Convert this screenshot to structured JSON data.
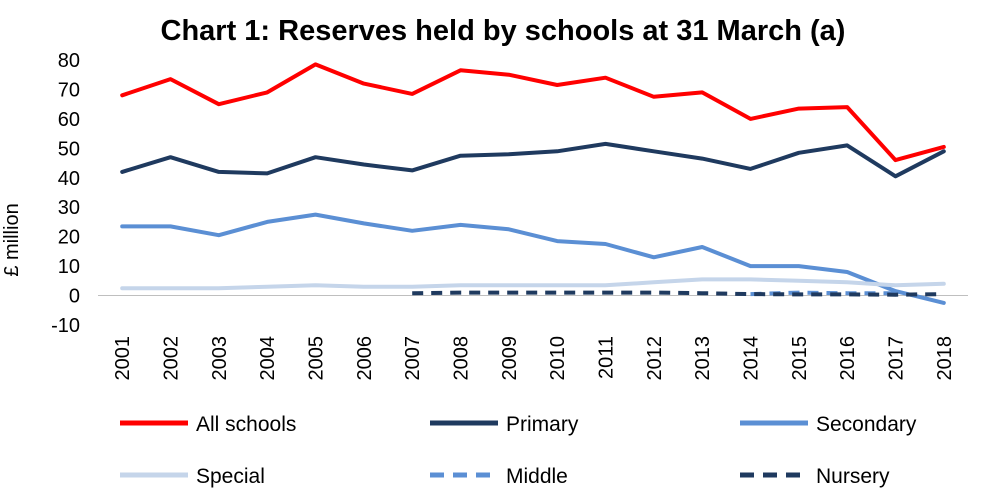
{
  "chart_data": {
    "type": "line",
    "title": "Chart 1: Reserves held by schools at 31 March (a)",
    "xlabel": "",
    "ylabel": "£ million",
    "ylim": [
      -10,
      80
    ],
    "yticks": [
      80,
      70,
      60,
      50,
      40,
      30,
      20,
      10,
      0,
      -10
    ],
    "x": [
      "2001",
      "2002",
      "2003",
      "2004",
      "2005",
      "2006",
      "2007",
      "2008",
      "2009",
      "2010",
      "2011",
      "2012",
      "2013",
      "2014",
      "2015",
      "2016",
      "2017",
      "2018"
    ],
    "grid": false,
    "legend_position": "bottom",
    "series": [
      {
        "name": "All schools",
        "color": "#ff0000",
        "dash": "solid",
        "values": [
          68,
          73.5,
          65,
          69,
          78.5,
          72,
          68.5,
          76.5,
          75,
          71.5,
          74,
          67.5,
          69,
          60,
          63.5,
          64,
          46,
          50.5
        ]
      },
      {
        "name": "Primary",
        "color": "#1f3a5f",
        "dash": "solid",
        "values": [
          42,
          47,
          42,
          41.5,
          47,
          44.5,
          42.5,
          47.5,
          48,
          49,
          51.5,
          49,
          46.5,
          43,
          48.5,
          51,
          40.5,
          49
        ]
      },
      {
        "name": "Secondary",
        "color": "#5b8fd4",
        "dash": "solid",
        "values": [
          23.5,
          23.5,
          20.5,
          25,
          27.5,
          24.5,
          22,
          24,
          22.5,
          18.5,
          17.5,
          13,
          16.5,
          10,
          10,
          8,
          1.5,
          -2.5
        ]
      },
      {
        "name": "Special",
        "color": "#c5d5ea",
        "dash": "solid",
        "values": [
          2.5,
          2.5,
          2.5,
          3,
          3.5,
          3,
          3,
          3.5,
          3.5,
          3.5,
          3.5,
          4.5,
          5.5,
          5.5,
          5,
          4.5,
          3.5,
          4
        ]
      },
      {
        "name": "Middle",
        "color": "#5b8fd4",
        "dash": "dashed",
        "values": [
          null,
          null,
          null,
          null,
          null,
          null,
          null,
          null,
          null,
          null,
          null,
          null,
          null,
          0.5,
          1,
          0.8,
          0.8,
          null
        ]
      },
      {
        "name": "Nursery",
        "color": "#1f3a5f",
        "dash": "dashed",
        "values": [
          null,
          null,
          null,
          null,
          null,
          null,
          0.8,
          1,
          1,
          1,
          1,
          1,
          0.8,
          0.5,
          0.4,
          0.4,
          0.3,
          0.5
        ]
      }
    ]
  }
}
